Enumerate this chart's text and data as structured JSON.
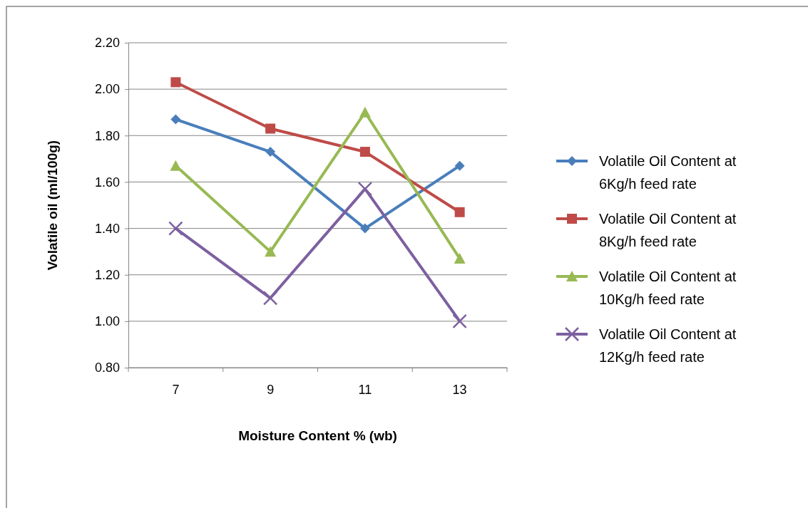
{
  "chart_data": {
    "type": "line",
    "xlabel": "Moisture Content % (wb)",
    "ylabel": "Volatile oil (ml/100g)",
    "categories": [
      "7",
      "9",
      "11",
      "13"
    ],
    "series": [
      {
        "name": "Volatile Oil Content at 6Kg/h feed rate",
        "color": "#4a7ebb",
        "marker": "diamond",
        "values": [
          1.87,
          1.73,
          1.4,
          1.67
        ]
      },
      {
        "name": "Volatile Oil Content at 8Kg/h feed rate",
        "color": "#be4b48",
        "marker": "square",
        "values": [
          2.03,
          1.83,
          1.73,
          1.47
        ]
      },
      {
        "name": "Volatile Oil Content at 10Kg/h feed rate",
        "color": "#98b954",
        "marker": "triangle",
        "values": [
          1.67,
          1.3,
          1.9,
          1.27
        ]
      },
      {
        "name": "Volatile Oil Content at 12Kg/h feed rate",
        "color": "#7d60a0",
        "marker": "cross",
        "values": [
          1.4,
          1.1,
          1.57,
          1.0
        ]
      }
    ],
    "ylim": [
      0.8,
      2.2
    ],
    "yticks": [
      {
        "value": 0.8,
        "label": "0.80"
      },
      {
        "value": 1.0,
        "label": "1.00"
      },
      {
        "value": 1.2,
        "label": "1.20"
      },
      {
        "value": 1.4,
        "label": "1.40"
      },
      {
        "value": 1.6,
        "label": "1.60"
      },
      {
        "value": 1.8,
        "label": "1.80"
      },
      {
        "value": 2.0,
        "label": "2.00"
      },
      {
        "value": 2.2,
        "label": "2.20"
      }
    ],
    "grid": "y",
    "legend": "right",
    "line_style": "solid"
  }
}
